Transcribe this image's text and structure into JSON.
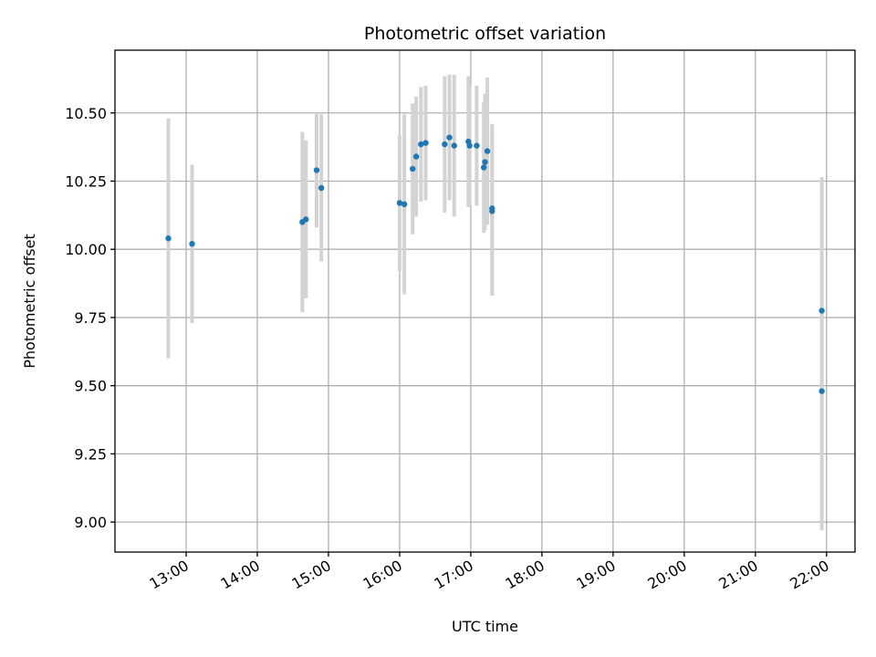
{
  "chart_data": {
    "type": "scatter",
    "title": "Photometric offset variation",
    "xlabel": "UTC time",
    "ylabel": "Photometric offset",
    "grid": true,
    "x_ticks": [
      "13:00",
      "14:00",
      "15:00",
      "16:00",
      "17:00",
      "18:00",
      "19:00",
      "20:00",
      "21:00",
      "22:00"
    ],
    "x_tick_hours": [
      13,
      14,
      15,
      16,
      17,
      18,
      19,
      20,
      21,
      22
    ],
    "xlim_hours": [
      12.0,
      22.4
    ],
    "y_ticks": [
      "9.00",
      "9.25",
      "9.50",
      "9.75",
      "10.00",
      "10.25",
      "10.50"
    ],
    "y_tick_values": [
      9.0,
      9.25,
      9.5,
      9.75,
      10.0,
      10.25,
      10.5
    ],
    "ylim": [
      8.89,
      10.73
    ],
    "colors": {
      "points": "#1f77b4",
      "errorbars": "#d3d3d3",
      "grid": "#b0b0b0"
    },
    "points": [
      {
        "t": "12:45",
        "y": 10.04,
        "err": 0.44
      },
      {
        "t": "13:05",
        "y": 10.02,
        "err": 0.29
      },
      {
        "t": "14:38",
        "y": 10.1,
        "err": 0.33
      },
      {
        "t": "14:41",
        "y": 10.11,
        "err": 0.29
      },
      {
        "t": "14:50",
        "y": 10.29,
        "err": 0.21
      },
      {
        "t": "14:54",
        "y": 10.225,
        "err": 0.27
      },
      {
        "t": "16:00",
        "y": 10.17,
        "err": 0.25
      },
      {
        "t": "16:04",
        "y": 10.165,
        "err": 0.33
      },
      {
        "t": "16:11",
        "y": 10.295,
        "err": 0.24
      },
      {
        "t": "16:14",
        "y": 10.34,
        "err": 0.22
      },
      {
        "t": "16:18",
        "y": 10.385,
        "err": 0.21
      },
      {
        "t": "16:22",
        "y": 10.39,
        "err": 0.21
      },
      {
        "t": "16:38",
        "y": 10.385,
        "err": 0.25
      },
      {
        "t": "16:42",
        "y": 10.41,
        "err": 0.23
      },
      {
        "t": "16:46",
        "y": 10.38,
        "err": 0.26
      },
      {
        "t": "16:58",
        "y": 10.395,
        "err": 0.24
      },
      {
        "t": "16:59",
        "y": 10.38,
        "err": 0.22
      },
      {
        "t": "17:05",
        "y": 10.38,
        "err": 0.22
      },
      {
        "t": "17:11",
        "y": 10.3,
        "err": 0.24
      },
      {
        "t": "17:12",
        "y": 10.32,
        "err": 0.25
      },
      {
        "t": "17:14",
        "y": 10.36,
        "err": 0.27
      },
      {
        "t": "17:18",
        "y": 10.14,
        "err": 0.31
      },
      {
        "t": "17:18",
        "y": 10.15,
        "err": 0.31
      },
      {
        "t": "21:56",
        "y": 9.775,
        "err": 0.49
      },
      {
        "t": "21:56",
        "y": 9.48,
        "err": 0.51
      }
    ]
  }
}
